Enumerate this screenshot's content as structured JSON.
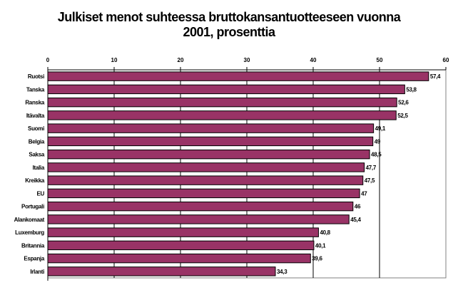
{
  "chart_data": {
    "type": "bar",
    "orientation": "horizontal",
    "title_line1": "Julkiset menot suhteessa bruttokansantuotteeseen vuonna",
    "title_line2": "2001, prosenttia",
    "categories": [
      "Ruotsi",
      "Tanska",
      "Ranska",
      "Itävalta",
      "Suomi",
      "Belgia",
      "Saksa",
      "Italia",
      "Kreikka",
      "EU",
      "Portugali",
      "Alankomaat",
      "Luxemburg",
      "Britannia",
      "Espanja",
      "Irlanti"
    ],
    "values": [
      57.4,
      53.8,
      52.6,
      52.5,
      49.1,
      49,
      48.5,
      47.7,
      47.5,
      47,
      46,
      45.4,
      40.8,
      40.1,
      39.6,
      34.3
    ],
    "data_labels": [
      "57,4",
      "53,8",
      "52,6",
      "52,5",
      "49,1",
      "49",
      "48,5",
      "47,7",
      "47,5",
      "47",
      "46",
      "45,4",
      "40,8",
      "40,1",
      "39,6",
      "34,3"
    ],
    "xlim": [
      0,
      60
    ],
    "ticks": [
      0,
      10,
      20,
      30,
      40,
      50,
      60
    ],
    "tick_labels": [
      "0",
      "10",
      "20",
      "30",
      "40",
      "50",
      "60"
    ],
    "axis_position": "top",
    "grid": true,
    "bar_color": "#993366"
  }
}
